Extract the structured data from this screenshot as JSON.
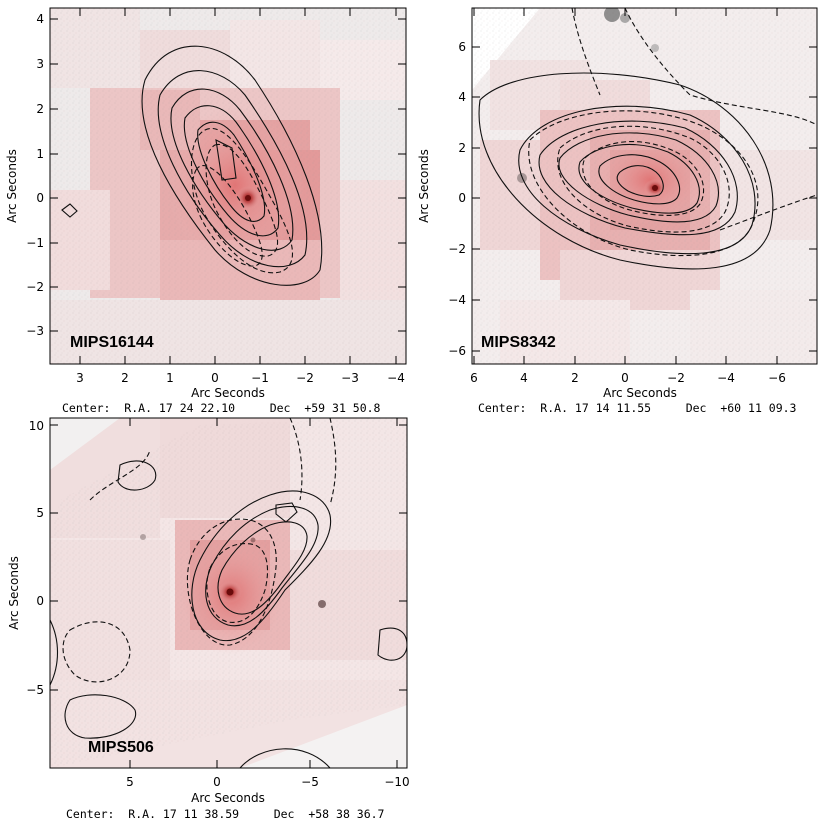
{
  "panels": [
    {
      "name": "MIPS16144",
      "xlabel": "Arc Seconds",
      "ylabel": "Arc Seconds",
      "x_ticks": [
        "3",
        "2",
        "1",
        "0",
        "−1",
        "−2",
        "−3",
        "−4"
      ],
      "y_ticks": [
        "4",
        "3",
        "2",
        "1",
        "0",
        "−1",
        "−2",
        "−3"
      ],
      "center": "Center:  R.A. 17 24 22.10     Dec  +59 31 50.8"
    },
    {
      "name": "MIPS8342",
      "xlabel": "Arc Seconds",
      "ylabel": "Arc Seconds",
      "x_ticks": [
        "6",
        "4",
        "2",
        "0",
        "−2",
        "−4",
        "−6"
      ],
      "y_ticks": [
        "6",
        "4",
        "2",
        "0",
        "−2",
        "−4",
        "−6"
      ],
      "center": "Center:  R.A. 17 14 11.55     Dec  +60 11 09.3"
    },
    {
      "name": "MIPS506",
      "xlabel": "Arc Seconds",
      "ylabel": "Arc Seconds",
      "x_ticks": [
        "5",
        "0",
        "−5",
        "−10"
      ],
      "y_ticks": [
        "10",
        "5",
        "0",
        "−5"
      ],
      "center": "Center:  R.A. 17 11 38.59     Dec  +58 38 36.7"
    }
  ],
  "colors": {
    "background": "#ffffff",
    "pixel_light": "#f1dede",
    "pixel_mid": "#e9b0b0",
    "pixel_strong": "#df8a8a",
    "core": "#8b1a1a",
    "contour": "#111111"
  }
}
